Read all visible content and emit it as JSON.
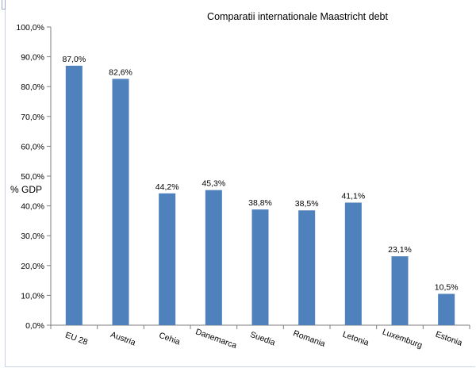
{
  "chart_data": {
    "type": "bar",
    "title": "Comparatii internationale Maastricht debt",
    "ylabel": "% GDP",
    "xlabel": "",
    "ylim": [
      0,
      100
    ],
    "yticks": [
      "0,0%",
      "10,0%",
      "20,0%",
      "30,0%",
      "40,0%",
      "50,0%",
      "60,0%",
      "70,0%",
      "80,0%",
      "90,0%",
      "100,0%"
    ],
    "categories": [
      "EU 28",
      "Austria",
      "Cehia",
      "Danemarca",
      "Suedia",
      "Romania",
      "Letonia",
      "Luxemburg",
      "Estonia"
    ],
    "values": [
      87.0,
      82.6,
      44.2,
      45.3,
      38.8,
      38.5,
      41.1,
      23.1,
      10.5
    ],
    "data_labels": [
      "87,0%",
      "82,6%",
      "44,2%",
      "45,3%",
      "38,8%",
      "38,5%",
      "41,1%",
      "23,1%",
      "10,5%"
    ],
    "bar_color": "#4f81bd",
    "grid": false,
    "legend": "none"
  }
}
